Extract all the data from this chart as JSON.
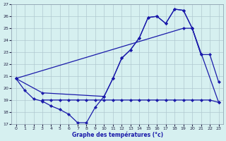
{
  "title": "Graphe des températures (°c)",
  "background_color": "#d6f0f0",
  "grid_color": "#b0c8d0",
  "line_color": "#1a1aaa",
  "xlim": [
    -0.5,
    23.5
  ],
  "ylim": [
    17,
    27
  ],
  "xticks": [
    0,
    1,
    2,
    3,
    4,
    5,
    6,
    7,
    8,
    9,
    10,
    11,
    12,
    13,
    14,
    15,
    16,
    17,
    18,
    19,
    20,
    21,
    22,
    23
  ],
  "yticks": [
    17,
    18,
    19,
    20,
    21,
    22,
    23,
    24,
    25,
    26,
    27
  ],
  "series": [
    {
      "x": [
        0,
        1,
        2,
        3,
        4,
        5,
        6,
        7,
        8,
        9,
        10,
        11,
        12,
        13,
        14,
        15,
        16,
        17,
        18,
        19,
        20,
        21
      ],
      "y": [
        20.8,
        19.8,
        19.1,
        18.9,
        18.5,
        18.2,
        17.8,
        17.1,
        17.1,
        18.4,
        19.3,
        20.8,
        22.5,
        23.2,
        24.2,
        25.9,
        26.0,
        25.4,
        26.6,
        26.5,
        25.0,
        22.8
      ]
    },
    {
      "x": [
        0,
        3,
        10,
        11,
        12,
        13,
        14,
        15,
        16,
        17,
        18,
        19,
        20,
        21,
        22,
        23
      ],
      "y": [
        20.8,
        19.6,
        19.3,
        20.8,
        22.5,
        23.2,
        24.2,
        25.9,
        26.0,
        25.4,
        26.6,
        26.5,
        25.0,
        22.8,
        22.8,
        20.5
      ]
    },
    {
      "x": [
        3,
        4,
        5,
        6,
        7,
        8,
        9,
        10,
        11,
        12,
        13,
        14,
        15,
        16,
        17,
        18,
        19,
        20,
        21,
        22,
        23
      ],
      "y": [
        19.0,
        19.0,
        19.0,
        19.0,
        19.0,
        19.0,
        19.0,
        19.0,
        19.0,
        19.0,
        19.0,
        19.0,
        19.0,
        19.0,
        19.0,
        19.0,
        19.0,
        19.0,
        19.0,
        19.0,
        18.8
      ]
    },
    {
      "x": [
        0,
        19,
        20,
        23
      ],
      "y": [
        20.8,
        25.0,
        25.0,
        18.8
      ]
    }
  ]
}
